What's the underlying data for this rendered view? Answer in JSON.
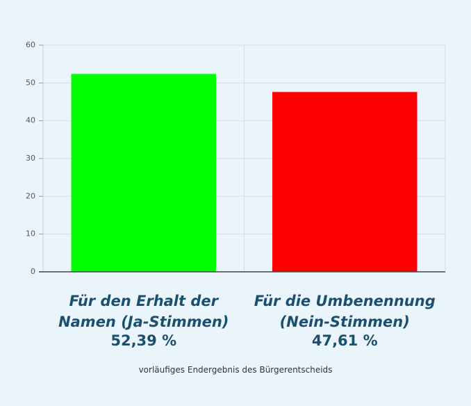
{
  "chart_data": {
    "type": "bar",
    "categories": [
      "Für den Erhalt der Namen (Ja-Stimmen)",
      "Für die Umbenennung (Nein-Stimmen)"
    ],
    "values": [
      52.39,
      47.61
    ],
    "value_labels": [
      "52,39 %",
      "47,61 %"
    ],
    "colors": [
      "#00ff00",
      "#ff0000"
    ],
    "ylim": [
      0,
      60
    ],
    "yticks": [
      0,
      10,
      20,
      30,
      40,
      50,
      60
    ],
    "grid": true,
    "caption": "vorläufiges Endergebnis des Bürgerentscheids"
  }
}
